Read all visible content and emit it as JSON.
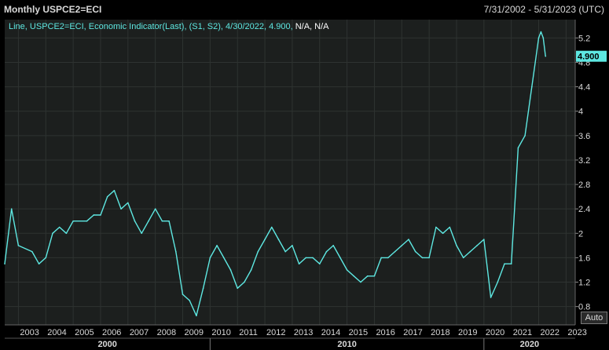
{
  "window": {
    "title": "Monthly USPCE2=ECI",
    "date_range": "7/31/2002 - 5/31/2023 (UTC)"
  },
  "legend": {
    "text_prefix": "Line, USPCE2=ECI, Economic Indicator(Last), (S1, S2), 4/30/2022, 4.900, ",
    "text_suffix": "N/A, N/A"
  },
  "controls": {
    "auto_label": "Auto"
  },
  "colors": {
    "background": "#000000",
    "plot_background": "#1c1f1e",
    "line": "#5ee8e2",
    "grid": "#2e3331",
    "text": "#d9d9d9",
    "last_value_tag": "#5ee8e2"
  },
  "chart_data": {
    "type": "line",
    "title": "Monthly USPCE2=ECI",
    "series": [
      {
        "name": "USPCE2=ECI",
        "values_start": "2002-07",
        "values_end": "2022-04",
        "frequency": "monthly",
        "points": [
          [
            "2002-07",
            1.5
          ],
          [
            "2002-10",
            2.4
          ],
          [
            "2003-01",
            1.8
          ],
          [
            "2003-07",
            1.7
          ],
          [
            "2003-10",
            1.5
          ],
          [
            "2004-01",
            1.6
          ],
          [
            "2004-04",
            2.0
          ],
          [
            "2004-07",
            2.1
          ],
          [
            "2004-10",
            2.0
          ],
          [
            "2005-01",
            2.2
          ],
          [
            "2005-07",
            2.2
          ],
          [
            "2005-10",
            2.3
          ],
          [
            "2006-01",
            2.3
          ],
          [
            "2006-04",
            2.6
          ],
          [
            "2006-07",
            2.7
          ],
          [
            "2006-10",
            2.4
          ],
          [
            "2007-01",
            2.5
          ],
          [
            "2007-04",
            2.2
          ],
          [
            "2007-07",
            2.0
          ],
          [
            "2007-10",
            2.2
          ],
          [
            "2008-01",
            2.4
          ],
          [
            "2008-04",
            2.2
          ],
          [
            "2008-07",
            2.2
          ],
          [
            "2008-10",
            1.7
          ],
          [
            "2009-01",
            1.0
          ],
          [
            "2009-04",
            0.9
          ],
          [
            "2009-07",
            0.65
          ],
          [
            "2009-10",
            1.1
          ],
          [
            "2010-01",
            1.6
          ],
          [
            "2010-04",
            1.8
          ],
          [
            "2010-07",
            1.6
          ],
          [
            "2010-10",
            1.4
          ],
          [
            "2011-01",
            1.1
          ],
          [
            "2011-04",
            1.2
          ],
          [
            "2011-07",
            1.4
          ],
          [
            "2011-10",
            1.7
          ],
          [
            "2012-01",
            1.9
          ],
          [
            "2012-04",
            2.1
          ],
          [
            "2012-07",
            1.9
          ],
          [
            "2012-10",
            1.7
          ],
          [
            "2013-01",
            1.8
          ],
          [
            "2013-04",
            1.5
          ],
          [
            "2013-07",
            1.6
          ],
          [
            "2013-10",
            1.6
          ],
          [
            "2014-01",
            1.5
          ],
          [
            "2014-04",
            1.7
          ],
          [
            "2014-07",
            1.8
          ],
          [
            "2014-10",
            1.6
          ],
          [
            "2015-01",
            1.4
          ],
          [
            "2015-04",
            1.3
          ],
          [
            "2015-07",
            1.2
          ],
          [
            "2015-10",
            1.3
          ],
          [
            "2016-01",
            1.3
          ],
          [
            "2016-04",
            1.6
          ],
          [
            "2016-07",
            1.6
          ],
          [
            "2016-10",
            1.7
          ],
          [
            "2017-01",
            1.8
          ],
          [
            "2017-04",
            1.9
          ],
          [
            "2017-07",
            1.7
          ],
          [
            "2017-10",
            1.6
          ],
          [
            "2018-01",
            1.6
          ],
          [
            "2018-04",
            2.1
          ],
          [
            "2018-07",
            2.0
          ],
          [
            "2018-10",
            2.1
          ],
          [
            "2019-01",
            1.8
          ],
          [
            "2019-04",
            1.6
          ],
          [
            "2019-07",
            1.7
          ],
          [
            "2019-10",
            1.8
          ],
          [
            "2020-01",
            1.9
          ],
          [
            "2020-04",
            0.95
          ],
          [
            "2020-07",
            1.2
          ],
          [
            "2020-10",
            1.5
          ],
          [
            "2021-01",
            1.5
          ],
          [
            "2021-04",
            3.4
          ],
          [
            "2021-07",
            3.6
          ],
          [
            "2021-10",
            4.4
          ],
          [
            "2022-01",
            5.2
          ],
          [
            "2022-02",
            5.3
          ],
          [
            "2022-03",
            5.2
          ],
          [
            "2022-04",
            4.9
          ]
        ]
      }
    ],
    "last_value_label": "4.900",
    "y_ticks": [
      "0.8",
      "1.2",
      "1.6",
      "2",
      "2.4",
      "2.8",
      "3.2",
      "3.6",
      "4",
      "4.4",
      "4.8",
      "5.2"
    ],
    "x_ticks": [
      "2003",
      "2004",
      "2005",
      "2006",
      "2007",
      "2008",
      "2009",
      "2010",
      "2011",
      "2012",
      "2013",
      "2014",
      "2015",
      "2016",
      "2017",
      "2018",
      "2019",
      "2020",
      "2021",
      "2022",
      "2023"
    ],
    "decades": [
      "2000",
      "2010",
      "2020"
    ],
    "ylim": [
      0.5,
      5.5
    ],
    "xlim": [
      "2002-07",
      "2023-05"
    ],
    "grid": true,
    "y_axis_side": "right"
  }
}
